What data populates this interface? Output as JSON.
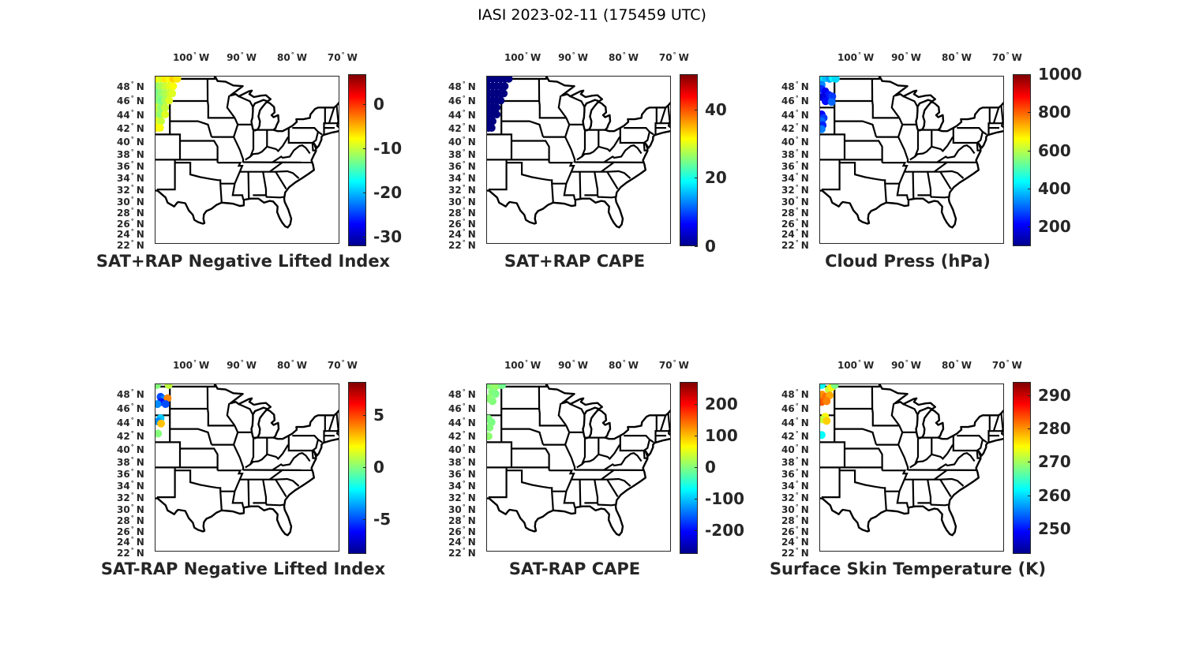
{
  "figure_title": "IASI 2023-02-11 (175459 UTC)",
  "chart_data": [
    {
      "type": "scatter",
      "title": "SAT+RAP Negative Lifted Index",
      "lon_ticks": [
        "100",
        "90",
        "80",
        "70"
      ],
      "lat_ticks": [
        "48",
        "46",
        "44",
        "42",
        "40",
        "38",
        "36",
        "34",
        "32",
        "30",
        "28",
        "26",
        "24",
        "22"
      ],
      "colorbar": {
        "range": [
          -32.1,
          6.8
        ],
        "ticks": [
          0,
          -10,
          -20,
          -30
        ],
        "tick_labels": [
          "0",
          "-10",
          "-20",
          "-30"
        ]
      },
      "points": [
        [
          -106.6,
          49,
          -8
        ],
        [
          -105.8,
          49,
          -9
        ],
        [
          -105,
          49,
          -7
        ],
        [
          -104.2,
          49,
          -8
        ],
        [
          -103.4,
          49,
          -6
        ],
        [
          -102.6,
          49,
          -7
        ],
        [
          -106.6,
          48,
          -12
        ],
        [
          -105.8,
          48,
          -11
        ],
        [
          -105,
          48,
          -10
        ],
        [
          -104.2,
          48,
          -9
        ],
        [
          -103.4,
          48,
          -8
        ],
        [
          -106.6,
          47,
          -13
        ],
        [
          -105.8,
          47,
          -12
        ],
        [
          -105,
          47,
          -11
        ],
        [
          -104.2,
          47,
          -10
        ],
        [
          -103.6,
          47,
          -9
        ],
        [
          -106.6,
          46,
          -12
        ],
        [
          -105.8,
          46,
          -13
        ],
        [
          -105,
          46,
          -11
        ],
        [
          -104.2,
          46,
          -9
        ],
        [
          -106.6,
          45,
          -10
        ],
        [
          -105.8,
          45,
          -12
        ],
        [
          -105,
          45,
          -10
        ],
        [
          -106.6,
          44,
          -11
        ],
        [
          -105.8,
          44,
          -12
        ],
        [
          -105,
          44,
          -9
        ],
        [
          -106.6,
          43,
          -9
        ],
        [
          -105.8,
          43,
          -10
        ],
        [
          -106.6,
          42,
          -7
        ],
        [
          -106,
          42,
          -8
        ]
      ]
    },
    {
      "type": "scatter",
      "title": "SAT+RAP CAPE",
      "lon_ticks": [
        "100",
        "90",
        "80",
        "70"
      ],
      "lat_ticks": [
        "48",
        "46",
        "44",
        "42",
        "40",
        "38",
        "36",
        "34",
        "32",
        "30",
        "28",
        "26",
        "24",
        "22"
      ],
      "colorbar": {
        "range": [
          0,
          50.4
        ],
        "ticks": [
          40,
          20,
          0
        ],
        "tick_labels": [
          "40",
          "20",
          "0"
        ]
      },
      "points": [
        [
          -106.6,
          49,
          0
        ],
        [
          -105.8,
          49,
          0
        ],
        [
          -105,
          49,
          0
        ],
        [
          -104.2,
          49,
          0
        ],
        [
          -103.4,
          49,
          0
        ],
        [
          -102.6,
          49,
          0
        ],
        [
          -106.6,
          48,
          0
        ],
        [
          -105.8,
          48,
          0
        ],
        [
          -105,
          48,
          0
        ],
        [
          -104.2,
          48,
          0
        ],
        [
          -103.4,
          48,
          0
        ],
        [
          -106.6,
          47,
          0
        ],
        [
          -105.8,
          47,
          0
        ],
        [
          -105,
          47,
          0
        ],
        [
          -104.2,
          47,
          0
        ],
        [
          -103.6,
          47,
          0
        ],
        [
          -106.6,
          46,
          0
        ],
        [
          -105.8,
          46,
          0
        ],
        [
          -105,
          46,
          0
        ],
        [
          -104.2,
          46,
          0
        ],
        [
          -106.6,
          45,
          0
        ],
        [
          -105.8,
          45,
          0
        ],
        [
          -105,
          45,
          0
        ],
        [
          -106.6,
          44,
          0
        ],
        [
          -105.8,
          44,
          0
        ],
        [
          -105,
          44,
          0
        ],
        [
          -106.6,
          43,
          0
        ],
        [
          -105.8,
          43,
          0
        ],
        [
          -106.6,
          42,
          0
        ],
        [
          -106,
          42,
          0
        ]
      ]
    },
    {
      "type": "scatter",
      "title": "Cloud Press (hPa)",
      "lon_ticks": [
        "100",
        "90",
        "80",
        "70"
      ],
      "lat_ticks": [
        "48",
        "46",
        "44",
        "42",
        "40",
        "38",
        "36",
        "34",
        "32",
        "30",
        "28",
        "26",
        "24",
        "22"
      ],
      "colorbar": {
        "range": [
          97,
          1000
        ],
        "ticks": [
          1000,
          800,
          600,
          400,
          200
        ],
        "tick_labels": [
          "1000",
          "800",
          "600",
          "400",
          "200"
        ]
      },
      "points": [
        [
          -106.5,
          48.9,
          420
        ],
        [
          -105.8,
          49.1,
          380
        ],
        [
          -105,
          49,
          350
        ],
        [
          -104.4,
          49.1,
          430
        ],
        [
          -103.8,
          49,
          400
        ],
        [
          -106.6,
          48.2,
          330
        ],
        [
          -106.6,
          47.6,
          250
        ],
        [
          -105.9,
          47.3,
          200
        ],
        [
          -105.2,
          46.8,
          230
        ],
        [
          -104.5,
          46.6,
          260
        ],
        [
          -106.5,
          46.5,
          180
        ],
        [
          -105.8,
          45.9,
          220
        ],
        [
          -104.6,
          45.8,
          300
        ],
        [
          -106.6,
          44,
          210
        ],
        [
          -106.2,
          43.5,
          260
        ],
        [
          -106.6,
          43,
          300
        ],
        [
          -106.4,
          42.4,
          240
        ],
        [
          -106.6,
          41.8,
          320
        ]
      ]
    },
    {
      "type": "scatter",
      "title": "SAT-RAP Negative Lifted Index",
      "lon_ticks": [
        "100",
        "90",
        "80",
        "70"
      ],
      "lat_ticks": [
        "48",
        "46",
        "44",
        "42",
        "40",
        "38",
        "36",
        "34",
        "32",
        "30",
        "28",
        "26",
        "24",
        "22"
      ],
      "colorbar": {
        "range": [
          -8.3,
          8.2
        ],
        "ticks": [
          5,
          0,
          -5
        ],
        "tick_labels": [
          "5",
          "0",
          "-5"
        ]
      },
      "points": [
        [
          -106.6,
          49.2,
          0
        ],
        [
          -104.3,
          49.2,
          1
        ],
        [
          -105.9,
          47.6,
          -5
        ],
        [
          -105.2,
          47.3,
          -4
        ],
        [
          -104.5,
          47.4,
          4
        ],
        [
          -105.8,
          46.9,
          -6
        ],
        [
          -106.5,
          46.6,
          -4
        ],
        [
          -104.9,
          46.6,
          -5
        ],
        [
          -105.9,
          44.6,
          -3
        ],
        [
          -106.4,
          44.1,
          -4
        ],
        [
          -105.8,
          43.8,
          3
        ],
        [
          -106.4,
          42.3,
          0
        ]
      ]
    },
    {
      "type": "scatter",
      "title": "SAT-RAP CAPE",
      "lon_ticks": [
        "100",
        "90",
        "80",
        "70"
      ],
      "lat_ticks": [
        "48",
        "46",
        "44",
        "42",
        "40",
        "38",
        "36",
        "34",
        "32",
        "30",
        "28",
        "26",
        "24",
        "22"
      ],
      "colorbar": {
        "range": [
          -275,
          270
        ],
        "ticks": [
          200,
          100,
          0,
          -100,
          -200
        ],
        "tick_labels": [
          "200",
          "100",
          "0",
          "-100",
          "-200"
        ]
      },
      "points": [
        [
          -106.6,
          49.2,
          0
        ],
        [
          -104.5,
          49.2,
          10
        ],
        [
          -103.9,
          49.2,
          -10
        ],
        [
          -105.5,
          48.8,
          10
        ],
        [
          -105.9,
          48.3,
          0
        ],
        [
          -105.2,
          48,
          -5
        ],
        [
          -106.5,
          47.4,
          5
        ],
        [
          -105.8,
          47,
          0
        ],
        [
          -106.6,
          44.5,
          0
        ],
        [
          -106,
          44,
          -5
        ],
        [
          -106.4,
          43.2,
          0
        ],
        [
          -106.6,
          41.9,
          5
        ]
      ]
    },
    {
      "type": "scatter",
      "title": "Surface Skin Temperature (K)",
      "lon_ticks": [
        "100",
        "90",
        "80",
        "70"
      ],
      "lat_ticks": [
        "48",
        "46",
        "44",
        "42",
        "40",
        "38",
        "36",
        "34",
        "32",
        "30",
        "28",
        "26",
        "24",
        "22"
      ],
      "colorbar": {
        "range": [
          242.4,
          294
        ],
        "ticks": [
          290,
          280,
          270,
          260,
          250
        ],
        "tick_labels": [
          "290",
          "280",
          "270",
          "260",
          "250"
        ]
      },
      "points": [
        [
          -106.6,
          49.2,
          262
        ],
        [
          -105.2,
          48.6,
          272
        ],
        [
          -104.6,
          48.9,
          275
        ],
        [
          -104,
          49.2,
          268
        ],
        [
          -106.5,
          47.9,
          280
        ],
        [
          -105.8,
          47.6,
          282
        ],
        [
          -105,
          47.8,
          279
        ],
        [
          -106.6,
          46.9,
          283
        ],
        [
          -105.6,
          47,
          281
        ],
        [
          -105.9,
          44.8,
          275
        ],
        [
          -106.4,
          44.4,
          272
        ],
        [
          -105.6,
          44.2,
          277
        ],
        [
          -106.6,
          42.1,
          262
        ]
      ]
    }
  ],
  "axis_suffix": {
    "lon": "W",
    "lat": "N"
  }
}
